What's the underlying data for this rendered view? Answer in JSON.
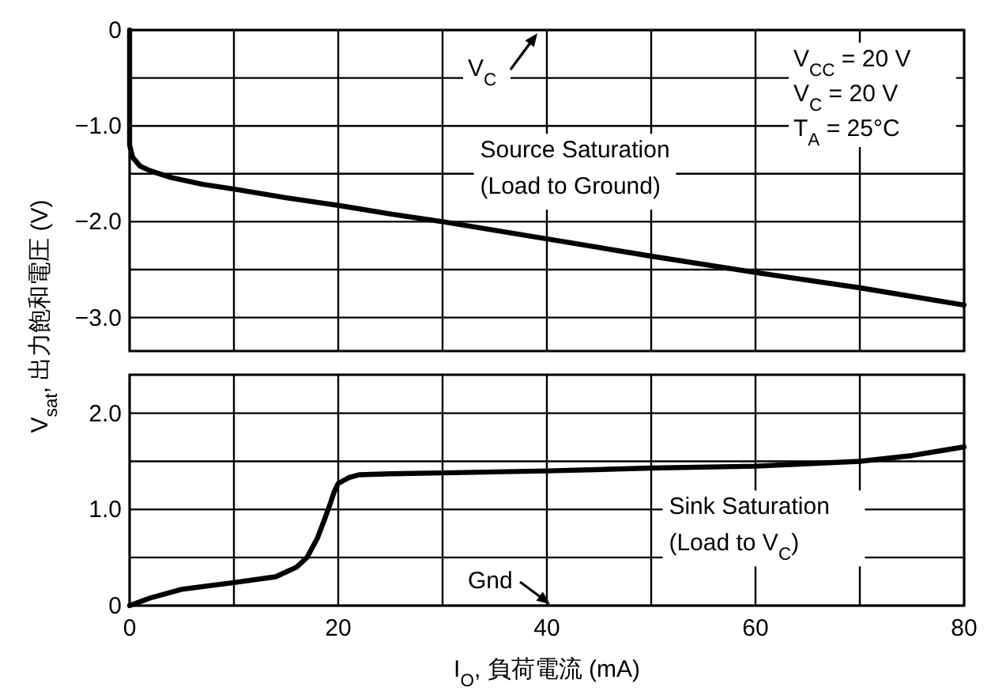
{
  "chart_data": [
    {
      "type": "line",
      "ylabel": "V$_{sat}$, 出力飽和電圧 (V)",
      "xlim": [
        0,
        80
      ],
      "ylim": [
        -3.35,
        0
      ],
      "tick_labels": "y",
      "grid": true,
      "line_style": "solid",
      "xticks": [
        0,
        {
          "value": 10,
          "label": null
        },
        20,
        {
          "value": 30,
          "label": null
        },
        40,
        {
          "value": 50,
          "label": null
        },
        60,
        {
          "value": 70,
          "label": null
        },
        80
      ],
      "yticks": [
        0,
        {
          "value": -0.5,
          "label": null
        },
        {
          "value": -1,
          "label": "−1.0"
        },
        {
          "value": -1.5,
          "label": null
        },
        {
          "value": -2,
          "label": "−2.0"
        },
        {
          "value": -2.5,
          "label": null
        },
        {
          "value": -3,
          "label": "−3.0"
        }
      ],
      "series": [
        {
          "name": "Source Saturation (Load to Ground)",
          "color": "#000000",
          "x": [
            0,
            0,
            0.3,
            1,
            2,
            4,
            7,
            10,
            15,
            20,
            25,
            30,
            40,
            50,
            60,
            70,
            80
          ],
          "values": [
            0,
            -1.2,
            -1.33,
            -1.42,
            -1.47,
            -1.54,
            -1.61,
            -1.66,
            -1.75,
            -1.83,
            -1.92,
            -2.0,
            -2.18,
            -2.36,
            -2.53,
            -2.69,
            -2.87
          ]
        }
      ],
      "annotations": [
        "V$_{C}$",
        "V$_{CC}$ = 20 V",
        "V$_{C}$ = 20 V",
        "T$_{A}$ = 25°C"
      ]
    },
    {
      "type": "line",
      "xlabel": "I$_{O}$, 負荷電流 (mA)",
      "xlim": [
        0,
        80
      ],
      "ylim": [
        0,
        2.4
      ],
      "grid": true,
      "line_style": "solid",
      "xticks": [
        0,
        {
          "value": 10,
          "label": null
        },
        20,
        {
          "value": 30,
          "label": null
        },
        40,
        {
          "value": 50,
          "label": null
        },
        60,
        {
          "value": 70,
          "label": null
        },
        80
      ],
      "yticks": [
        0,
        {
          "value": 0.5,
          "label": null
        },
        {
          "value": 1,
          "label": "1.0"
        },
        {
          "value": 1.5,
          "label": null
        },
        {
          "value": 2,
          "label": "2.0"
        }
      ],
      "series": [
        {
          "name": "Sink Saturation (Load to V$_{C}$)",
          "color": "#000000",
          "x": [
            0,
            2,
            5,
            10,
            14,
            16,
            17,
            18,
            18.7,
            19.2,
            19.6,
            20,
            21,
            22,
            25,
            30,
            40,
            50,
            60,
            70,
            75,
            80
          ],
          "values": [
            0,
            0.08,
            0.17,
            0.24,
            0.3,
            0.4,
            0.5,
            0.7,
            0.9,
            1.05,
            1.18,
            1.27,
            1.33,
            1.36,
            1.37,
            1.38,
            1.4,
            1.43,
            1.45,
            1.5,
            1.56,
            1.65
          ]
        }
      ],
      "annotations": [
        "Gnd"
      ]
    }
  ]
}
